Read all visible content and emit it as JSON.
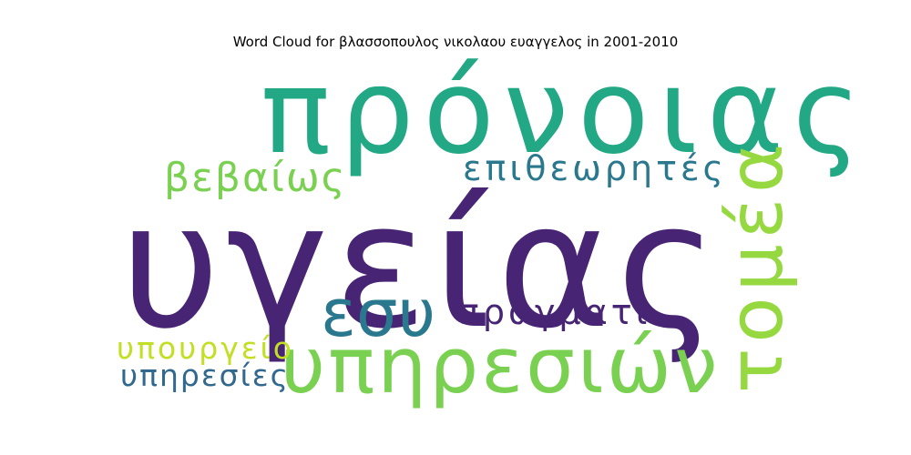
{
  "chart_data": {
    "type": "wordcloud",
    "title": "Word Cloud for βλασσοπουλος νικολαου ευαγγελος in 2001-2010",
    "words": [
      {
        "text": "υγείας",
        "color": "#482474"
      },
      {
        "text": "πρόνοιας",
        "color": "#22a884"
      },
      {
        "text": "υπηρεσιών",
        "color": "#7ad151"
      },
      {
        "text": "τομέα",
        "color": "#95d840"
      },
      {
        "text": "εσυ",
        "color": "#2a788e"
      },
      {
        "text": "επιθεωρητές",
        "color": "#2a788e"
      },
      {
        "text": "βεβαίως",
        "color": "#7ad151"
      },
      {
        "text": "πράγματι",
        "color": "#482474"
      },
      {
        "text": "υπουργείο",
        "color": "#c2df23"
      },
      {
        "text": "υπηρεσίες",
        "color": "#31688e"
      }
    ]
  }
}
